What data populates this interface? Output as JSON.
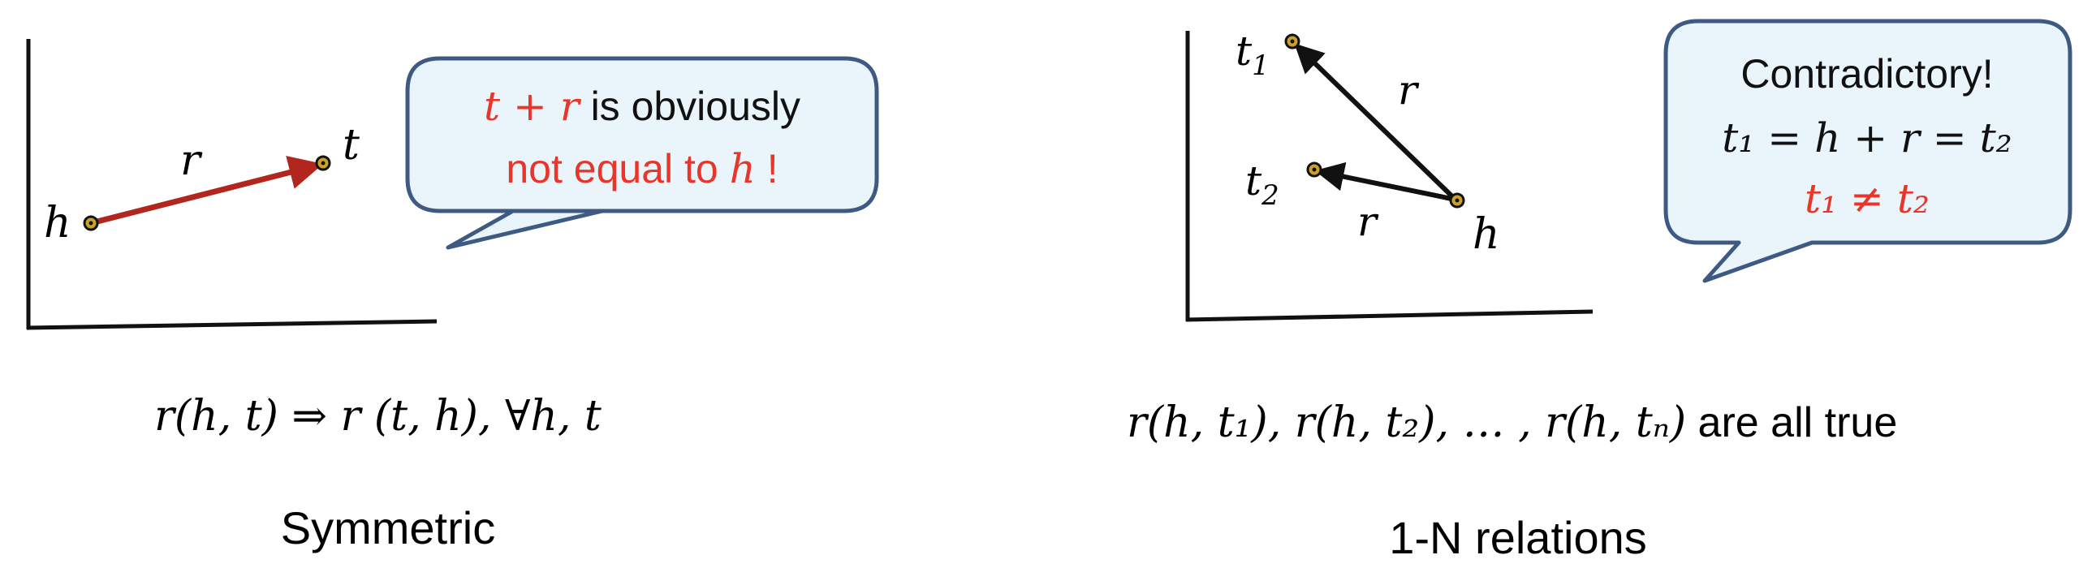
{
  "left_panel": {
    "labels": {
      "head": "h",
      "relation": "r",
      "tail": "t"
    },
    "callout": {
      "line1_math": "t + r",
      "line1_text": " is obviously",
      "line2_text": "not equal to ",
      "line2_math": "h",
      "line2_end": " !"
    },
    "formula": "r(h, t) ⇒ r (t, h), ∀h, t",
    "caption": "Symmetric"
  },
  "right_panel": {
    "labels": {
      "t1": "t",
      "t1_sub": "1",
      "t2": "t",
      "t2_sub": "2",
      "head": "h",
      "r_upper": "r",
      "r_lower": "r"
    },
    "callout": {
      "line1": "Contradictory!",
      "line2": "t₁ = h + r = t₂",
      "line3": "t₁ ≠ t₂"
    },
    "formula_math": "r(h, t₁), r(h, t₂), … , r(h, tₙ)",
    "formula_text": " are all true",
    "caption": "1-N relations"
  },
  "colors": {
    "accent_red": "#e8362a",
    "arrow_red": "#b3261e",
    "bubble_fill": "#eaf4fb",
    "bubble_stroke": "#3f5a82",
    "point_fill": "#c9a227"
  }
}
